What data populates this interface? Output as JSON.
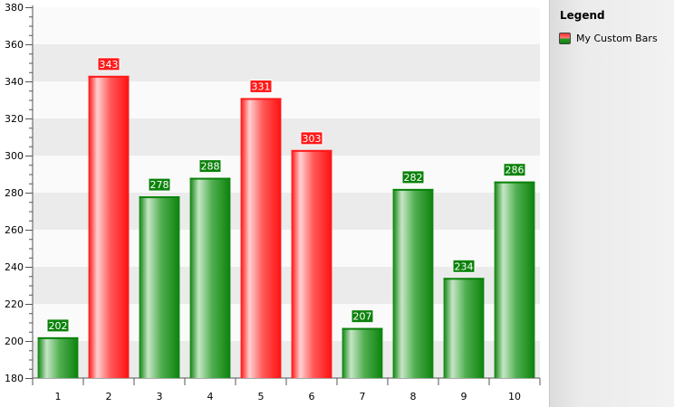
{
  "chart_data": {
    "type": "bar",
    "categories": [
      "1",
      "2",
      "3",
      "4",
      "5",
      "6",
      "7",
      "8",
      "9",
      "10"
    ],
    "series": [
      {
        "name": "My Custom Bars",
        "values": [
          202,
          343,
          278,
          288,
          331,
          303,
          207,
          282,
          234,
          286
        ]
      }
    ],
    "highlight_threshold": 300,
    "colors": {
      "above_threshold": "#ff1a1a",
      "below_threshold": "#0b820b"
    },
    "ylim": [
      180,
      380
    ],
    "y_ticks": [
      180,
      200,
      220,
      240,
      260,
      280,
      300,
      320,
      340,
      360,
      380
    ],
    "y_minor_step": 5,
    "grid": "alternating-bands",
    "legend_position": "right",
    "data_labels": true
  },
  "legend": {
    "title": "Legend",
    "items": [
      {
        "label": "My Custom Bars"
      }
    ]
  }
}
